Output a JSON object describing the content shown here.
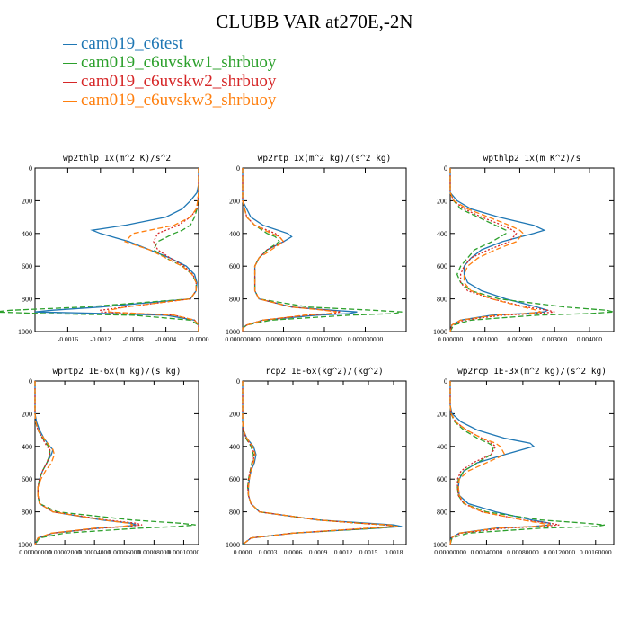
{
  "title": "CLUBB VAR at270E,-2N",
  "colors": {
    "series": [
      "#1f77b4",
      "#2ca02c",
      "#d62728",
      "#ff7f0e"
    ]
  },
  "legend": [
    {
      "label": "cam019_c6test",
      "color": "#1f77b4",
      "dash": "solid"
    },
    {
      "label": "cam019_c6uvskw1_shrbuoy",
      "color": "#2ca02c",
      "dash": "dashed"
    },
    {
      "label": "cam019_c6uvskw2_shrbuoy",
      "color": "#d62728",
      "dash": "dotted"
    },
    {
      "label": "cam019_c6uvskw3_shrbuoy",
      "color": "#ff7f0e",
      "dash": "dashed"
    }
  ],
  "chart_data": [
    {
      "type": "line",
      "title": "wp2thlp  1x(m^2 K)/s^2",
      "xlim": [
        -0.002,
        0.0
      ],
      "ylim": [
        1000,
        0
      ],
      "xticks": [
        -0.0016,
        -0.0012,
        -0.0008,
        -0.0004,
        -0.0
      ],
      "xtick_labels": [
        "-0.0016",
        "-0.0012",
        "-0.0008",
        "-0.0004",
        "-0.0000"
      ],
      "yticks": [
        0,
        200,
        400,
        600,
        800,
        1000
      ],
      "y": [
        0,
        100,
        150,
        200,
        250,
        300,
        350,
        380,
        400,
        450,
        500,
        550,
        600,
        650,
        700,
        750,
        800,
        850,
        870,
        880,
        890,
        900,
        930,
        960,
        1000
      ],
      "series": [
        {
          "name": "cam019_c6test",
          "values": [
            0,
            0,
            -2e-05,
            -0.0001,
            -0.0002,
            -0.0004,
            -0.0009,
            -0.0013,
            -0.0012,
            -0.00085,
            -0.0006,
            -0.00035,
            -0.00015,
            -5e-05,
            -2e-05,
            -3e-05,
            -0.0001,
            -0.0012,
            -0.0018,
            -0.002,
            -0.0011,
            -0.0004,
            -5e-05,
            0,
            0
          ]
        },
        {
          "name": "cam019_c6uvskw1_shrbuoy",
          "values": [
            0,
            0,
            0,
            -1e-05,
            -2e-05,
            -5e-05,
            -0.0001,
            -0.0002,
            -0.0003,
            -0.0005,
            -0.00055,
            -0.0004,
            -0.0002,
            -8e-05,
            -3e-05,
            -3e-05,
            -0.0001,
            -0.0014,
            -0.0023,
            -0.0025,
            -0.0019,
            -0.0008,
            -0.0001,
            0,
            0
          ]
        },
        {
          "name": "cam019_c6uvskw2_shrbuoy",
          "values": [
            0,
            0,
            0,
            -1e-05,
            -2e-05,
            -0.0001,
            -0.00025,
            -0.0004,
            -0.0005,
            -0.00055,
            -0.0005,
            -0.00035,
            -0.00018,
            -7e-05,
            -3e-05,
            -3e-05,
            -0.0001,
            -0.0009,
            -0.0012,
            -0.0012,
            -0.0008,
            -0.0003,
            -5e-05,
            0,
            0
          ]
        },
        {
          "name": "cam019_c6uvskw3_shrbuoy",
          "values": [
            0,
            0,
            0,
            -1e-05,
            -3e-05,
            -0.0001,
            -0.0003,
            -0.0006,
            -0.0008,
            -0.0009,
            -0.0006,
            -0.0004,
            -0.0002,
            -8e-05,
            -3e-05,
            -3e-05,
            -0.0001,
            -0.0009,
            -0.0011,
            -0.0011,
            -0.0007,
            -0.0003,
            -5e-05,
            0,
            0
          ]
        }
      ]
    },
    {
      "type": "line",
      "title": "wp2rtp  1x(m^2 kg)/(s^2 kg)",
      "xlim": [
        0.0,
        4e-05
      ],
      "ylim": [
        1000,
        0
      ],
      "xticks": [
        0.0,
        1e-05,
        2e-05,
        3e-05
      ],
      "xtick_labels": [
        "0.000000000",
        "0.000010000",
        "0.000020000",
        "0.000030000"
      ],
      "yticks": [
        0,
        200,
        400,
        600,
        800,
        1000
      ],
      "y": [
        0,
        200,
        300,
        350,
        400,
        420,
        450,
        500,
        550,
        600,
        650,
        700,
        750,
        800,
        850,
        870,
        880,
        890,
        900,
        930,
        960,
        980,
        1000
      ],
      "series": [
        {
          "name": "cam019_c6test",
          "values": [
            0,
            0,
            2e-06,
            5e-06,
            1.1e-05,
            1.2e-05,
            1e-05,
            6e-06,
            4e-06,
            3e-06,
            3e-06,
            3e-06,
            3e-06,
            4e-06,
            1.2e-05,
            2.2e-05,
            2.8e-05,
            2.6e-05,
            1.8e-05,
            5e-06,
            1e-06,
            0,
            0
          ]
        },
        {
          "name": "cam019_c6uvskw1_shrbuoy",
          "values": [
            0,
            0,
            1e-06,
            3e-06,
            6e-06,
            8e-06,
            9e-06,
            6e-06,
            4e-06,
            3e-06,
            3e-06,
            3e-06,
            3e-06,
            4e-06,
            1.6e-05,
            3.2e-05,
            3.9e-05,
            3.7e-05,
            2.6e-05,
            7e-06,
            1e-06,
            0,
            0
          ]
        },
        {
          "name": "cam019_c6uvskw2_shrbuoy",
          "values": [
            0,
            0,
            1e-06,
            3e-06,
            8e-06,
            9e-06,
            1e-05,
            6e-06,
            4e-06,
            3e-06,
            3e-06,
            3e-06,
            3e-06,
            4e-06,
            1.2e-05,
            2.1e-05,
            2.4e-05,
            2.2e-05,
            1.6e-05,
            5e-06,
            1e-06,
            0,
            0
          ]
        },
        {
          "name": "cam019_c6uvskw3_shrbuoy",
          "values": [
            0,
            0,
            1e-06,
            3e-06,
            7e-06,
            9e-06,
            1e-05,
            7e-06,
            4e-06,
            3e-06,
            3e-06,
            3e-06,
            3e-06,
            4e-06,
            1.2e-05,
            2e-05,
            2.3e-05,
            2.1e-05,
            1.5e-05,
            5e-06,
            1e-06,
            0,
            0
          ]
        }
      ]
    },
    {
      "type": "line",
      "title": "wpthlp2  1x(m K^2)/s",
      "xlim": [
        0.0,
        0.0047
      ],
      "ylim": [
        1000,
        0
      ],
      "xticks": [
        0.0,
        0.001,
        0.002,
        0.003,
        0.004
      ],
      "xtick_labels": [
        "0.000000",
        "0.001000",
        "0.002000",
        "0.003000",
        "0.004000"
      ],
      "yticks": [
        0,
        200,
        400,
        600,
        800,
        1000
      ],
      "y": [
        0,
        150,
        200,
        250,
        300,
        350,
        380,
        400,
        450,
        500,
        550,
        600,
        650,
        700,
        750,
        800,
        850,
        870,
        880,
        890,
        900,
        930,
        960,
        1000
      ],
      "series": [
        {
          "name": "cam019_c6test",
          "values": [
            0,
            0,
            0.0002,
            0.0006,
            0.0014,
            0.0024,
            0.0027,
            0.0024,
            0.0015,
            0.0009,
            0.0006,
            0.0004,
            0.0004,
            0.0005,
            0.0009,
            0.0016,
            0.0025,
            0.0028,
            0.0027,
            0.0021,
            0.0012,
            0.0003,
            5e-05,
            0
          ]
        },
        {
          "name": "cam019_c6uvskw1_shrbuoy",
          "values": [
            0,
            0,
            0.0001,
            0.0003,
            0.0008,
            0.0013,
            0.0016,
            0.0016,
            0.0012,
            0.0007,
            0.0005,
            0.0003,
            0.0002,
            0.0003,
            0.0006,
            0.0014,
            0.0033,
            0.0045,
            0.0047,
            0.004,
            0.0025,
            0.0006,
            0.0001,
            0
          ]
        },
        {
          "name": "cam019_c6uvskw2_shrbuoy",
          "values": [
            0,
            0,
            0.0001,
            0.0004,
            0.0009,
            0.0015,
            0.0018,
            0.0019,
            0.0017,
            0.0011,
            0.0006,
            0.0004,
            0.0003,
            0.0003,
            0.0005,
            0.0012,
            0.0022,
            0.0028,
            0.003,
            0.0025,
            0.0015,
            0.0004,
            5e-05,
            0
          ]
        },
        {
          "name": "cam019_c6uvskw3_shrbuoy",
          "values": [
            0,
            0,
            0.0001,
            0.0005,
            0.0011,
            0.0017,
            0.002,
            0.0021,
            0.0019,
            0.0013,
            0.0008,
            0.0005,
            0.0004,
            0.0004,
            0.0006,
            0.0012,
            0.0021,
            0.0025,
            0.0026,
            0.0022,
            0.0013,
            0.0003,
            5e-05,
            0
          ]
        }
      ]
    },
    {
      "type": "line",
      "title": "wprtp2  1E-6x(m kg)/(s kg)",
      "xlim": [
        0.0,
        0.00011
      ],
      "ylim": [
        1000,
        0
      ],
      "xticks": [
        0.0,
        2e-05,
        4e-05,
        6e-05,
        8e-05,
        0.0001
      ],
      "xtick_labels": [
        "0.00000000",
        "0.00002000",
        "0.00004000",
        "0.00006000",
        "0.00008000",
        "0.00010000"
      ],
      "yticks": [
        0,
        200,
        400,
        600,
        800,
        1000
      ],
      "y": [
        0,
        200,
        250,
        300,
        350,
        400,
        420,
        450,
        500,
        550,
        600,
        650,
        700,
        750,
        800,
        850,
        870,
        880,
        890,
        900,
        930,
        960,
        1000
      ],
      "series": [
        {
          "name": "cam019_c6test",
          "values": [
            0,
            0,
            1e-06,
            3e-06,
            6e-06,
            1e-05,
            1.2e-05,
            1.1e-05,
            8e-06,
            5e-06,
            3e-06,
            2e-06,
            2e-06,
            3e-06,
            1.2e-05,
            4.5e-05,
            6.5e-05,
            6.8e-05,
            6e-05,
            4.2e-05,
            1.2e-05,
            2e-06,
            0
          ]
        },
        {
          "name": "cam019_c6uvskw1_shrbuoy",
          "values": [
            0,
            0,
            5e-07,
            2e-06,
            5e-06,
            9e-06,
            1e-05,
            1e-05,
            8e-06,
            5e-06,
            3e-06,
            2e-06,
            2e-06,
            3e-06,
            1.5e-05,
            6.5e-05,
            9.8e-05,
            0.000108,
            9.5e-05,
            7e-05,
            2e-05,
            3e-06,
            0
          ]
        },
        {
          "name": "cam019_c6uvskw2_shrbuoy",
          "values": [
            0,
            0,
            5e-07,
            2e-06,
            5e-06,
            8e-06,
            1e-05,
            1e-05,
            8e-06,
            5e-06,
            3e-06,
            2e-06,
            2e-06,
            3e-06,
            1.2e-05,
            4.8e-05,
            6.8e-05,
            7.2e-05,
            6.2e-05,
            4.4e-05,
            1.2e-05,
            2e-06,
            0
          ]
        },
        {
          "name": "cam019_c6uvskw3_shrbuoy",
          "values": [
            0,
            0,
            5e-07,
            2e-06,
            6e-06,
            1e-05,
            1.2e-05,
            1.3e-05,
            1.1e-05,
            7e-06,
            4e-06,
            2e-06,
            2e-06,
            3e-06,
            1.2e-05,
            4.6e-05,
            6.3e-05,
            6.6e-05,
            5.8e-05,
            4e-05,
            1.1e-05,
            2e-06,
            0
          ]
        }
      ]
    },
    {
      "type": "line",
      "title": "rcp2  1E-6x(kg^2)/(kg^2)",
      "xlim": [
        0.0,
        0.00195
      ],
      "ylim": [
        1000,
        0
      ],
      "xticks": [
        0.0,
        0.0003,
        0.0006,
        0.0009,
        0.0012,
        0.0015,
        0.0018
      ],
      "xtick_labels": [
        "0.0000",
        "0.0003",
        "0.0006",
        "0.0009",
        "0.0012",
        "0.0015",
        "0.0018"
      ],
      "yticks": [
        0,
        200,
        400,
        600,
        800,
        1000
      ],
      "y": [
        0,
        250,
        300,
        350,
        400,
        450,
        500,
        550,
        600,
        650,
        700,
        750,
        800,
        850,
        870,
        880,
        890,
        900,
        930,
        960,
        1000
      ],
      "series": [
        {
          "name": "cam019_c6test",
          "values": [
            0,
            0,
            1e-05,
            5e-05,
            0.00013,
            0.00016,
            0.00014,
            0.0001,
            8e-05,
            7e-05,
            7e-05,
            0.0001,
            0.0002,
            0.0009,
            0.0015,
            0.0018,
            0.0019,
            0.0016,
            0.0006,
            0.0001,
            0
          ]
        },
        {
          "name": "cam019_c6uvskw1_shrbuoy",
          "values": [
            0,
            0,
            1e-05,
            4e-05,
            0.0001,
            0.00013,
            0.00011,
            9e-05,
            7e-05,
            6e-05,
            7e-05,
            0.0001,
            0.0002,
            0.0009,
            0.0014,
            0.0017,
            0.00185,
            0.0016,
            0.0006,
            0.0001,
            0
          ]
        },
        {
          "name": "cam019_c6uvskw2_shrbuoy",
          "values": [
            0,
            0,
            1e-05,
            4e-05,
            0.00011,
            0.00014,
            0.00012,
            9e-05,
            7e-05,
            6e-05,
            7e-05,
            0.0001,
            0.0002,
            0.0009,
            0.0014,
            0.0017,
            0.0018,
            0.0015,
            0.0006,
            0.0001,
            0
          ]
        },
        {
          "name": "cam019_c6uvskw3_shrbuoy",
          "values": [
            0,
            0,
            1e-05,
            5e-05,
            0.00012,
            0.00015,
            0.00013,
            0.0001,
            8e-05,
            7e-05,
            7e-05,
            0.0001,
            0.0002,
            0.0009,
            0.0014,
            0.00175,
            0.00185,
            0.0015,
            0.0006,
            0.0001,
            0
          ]
        }
      ]
    },
    {
      "type": "line",
      "title": "wp2rcp  1E-3x(m^2 kg)/(s^2 kg)",
      "xlim": [
        0.0,
        0.0018
      ],
      "ylim": [
        1000,
        0
      ],
      "xticks": [
        0.0,
        0.0004,
        0.0008,
        0.0012,
        0.0016
      ],
      "xtick_labels": [
        "0.00000000",
        "0.00040000",
        "0.00080000",
        "0.00120000",
        "0.00160000"
      ],
      "yticks": [
        0,
        200,
        400,
        600,
        800,
        1000
      ],
      "y": [
        0,
        150,
        200,
        250,
        300,
        350,
        380,
        400,
        450,
        500,
        550,
        600,
        650,
        700,
        750,
        800,
        850,
        870,
        880,
        890,
        900,
        930,
        960,
        1000
      ],
      "series": [
        {
          "name": "cam019_c6test",
          "values": [
            0,
            0,
            2e-05,
            0.00012,
            0.0003,
            0.0006,
            0.00088,
            0.00092,
            0.0006,
            0.0003,
            0.00015,
            0.0001,
            9e-05,
            0.0001,
            0.0002,
            0.0005,
            0.0009,
            0.0011,
            0.0011,
            0.0009,
            0.0005,
            0.0001,
            1e-05,
            0
          ]
        },
        {
          "name": "cam019_c6uvskw1_shrbuoy",
          "values": [
            0,
            0,
            1e-05,
            5e-05,
            0.00015,
            0.0003,
            0.00042,
            0.00048,
            0.00045,
            0.0003,
            0.00015,
            9e-05,
            8e-05,
            9e-05,
            0.00015,
            0.0004,
            0.001,
            0.0015,
            0.0017,
            0.0016,
            0.001,
            0.0002,
            2e-05,
            0
          ]
        },
        {
          "name": "cam019_c6uvskw2_shrbuoy",
          "values": [
            0,
            0,
            1e-05,
            6e-05,
            0.00018,
            0.00035,
            0.00045,
            0.0005,
            0.00045,
            0.00025,
            0.00012,
            8e-05,
            8e-05,
            9e-05,
            0.00015,
            0.00035,
            0.0008,
            0.0011,
            0.0012,
            0.001,
            0.0006,
            0.00012,
            1e-05,
            0
          ]
        },
        {
          "name": "cam019_c6uvskw3_shrbuoy",
          "values": [
            0,
            0,
            1e-05,
            6e-05,
            0.00018,
            0.00035,
            0.0005,
            0.00055,
            0.0006,
            0.0004,
            0.0002,
            0.0001,
            9e-05,
            0.0001,
            0.00016,
            0.00035,
            0.0008,
            0.001,
            0.0011,
            0.0009,
            0.0005,
            0.0001,
            1e-05,
            0
          ]
        }
      ]
    }
  ]
}
